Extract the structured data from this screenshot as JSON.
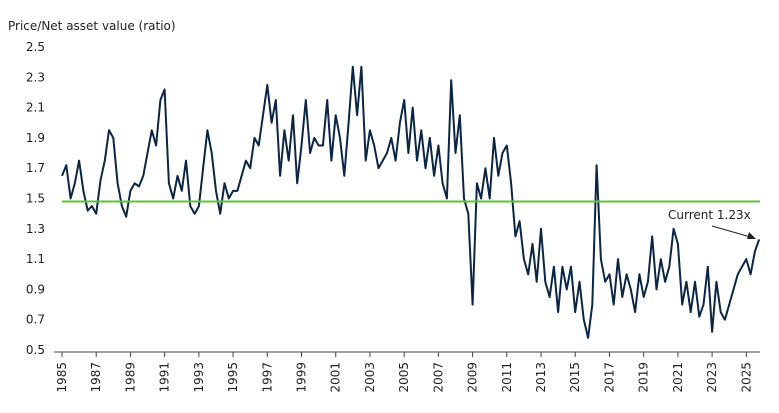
{
  "chart_data": {
    "type": "line",
    "title": "Price/Net asset value (ratio)",
    "annotation": "Current 1.23x",
    "xlim": [
      1985,
      2025.8
    ],
    "xticks": [
      1985,
      1987,
      1989,
      1991,
      1993,
      1995,
      1997,
      1999,
      2001,
      2003,
      2005,
      2007,
      2009,
      2011,
      2013,
      2015,
      2017,
      2019,
      2021,
      2023,
      2025
    ],
    "ylim": [
      0.5,
      2.5
    ],
    "yticks": [
      0.5,
      0.7,
      0.9,
      1.1,
      1.3,
      1.5,
      1.7,
      1.9,
      2.1,
      2.3,
      2.5
    ],
    "reference_line": {
      "value": 1.48,
      "color": "#5cc43a"
    },
    "x": [
      1985,
      1985.25,
      1985.5,
      1985.75,
      1986,
      1986.25,
      1986.5,
      1986.75,
      1987,
      1987.25,
      1987.5,
      1987.75,
      1988,
      1988.25,
      1988.5,
      1988.75,
      1989,
      1989.25,
      1989.5,
      1989.75,
      1990,
      1990.25,
      1990.5,
      1990.75,
      1991,
      1991.25,
      1991.5,
      1991.75,
      1992,
      1992.25,
      1992.5,
      1992.75,
      1993,
      1993.25,
      1993.5,
      1993.75,
      1994,
      1994.25,
      1994.5,
      1994.75,
      1995,
      1995.25,
      1995.5,
      1995.75,
      1996,
      1996.25,
      1996.5,
      1996.75,
      1997,
      1997.25,
      1997.5,
      1997.75,
      1998,
      1998.25,
      1998.5,
      1998.75,
      1999,
      1999.25,
      1999.5,
      1999.75,
      2000,
      2000.25,
      2000.5,
      2000.75,
      2001,
      2001.25,
      2001.5,
      2001.75,
      2002,
      2002.25,
      2002.5,
      2002.75,
      2003,
      2003.25,
      2003.5,
      2003.75,
      2004,
      2004.25,
      2004.5,
      2004.75,
      2005,
      2005.25,
      2005.5,
      2005.75,
      2006,
      2006.25,
      2006.5,
      2006.75,
      2007,
      2007.25,
      2007.5,
      2007.75,
      2008,
      2008.25,
      2008.5,
      2008.75,
      2009,
      2009.25,
      2009.5,
      2009.75,
      2010,
      2010.25,
      2010.5,
      2010.75,
      2011,
      2011.25,
      2011.5,
      2011.75,
      2012,
      2012.25,
      2012.5,
      2012.75,
      2013,
      2013.25,
      2013.5,
      2013.75,
      2014,
      2014.25,
      2014.5,
      2014.75,
      2015,
      2015.25,
      2015.5,
      2015.75,
      2016,
      2016.25,
      2016.5,
      2016.75,
      2017,
      2017.25,
      2017.5,
      2017.75,
      2018,
      2018.25,
      2018.5,
      2018.75,
      2019,
      2019.25,
      2019.5,
      2019.75,
      2020,
      2020.25,
      2020.5,
      2020.75,
      2021,
      2021.25,
      2021.5,
      2021.75,
      2022,
      2022.25,
      2022.5,
      2022.75,
      2023,
      2023.25,
      2023.5,
      2023.75,
      2024,
      2024.25,
      2024.5,
      2024.75,
      2025,
      2025.25,
      2025.5,
      2025.75
    ],
    "series": [
      {
        "color": "#0b2545",
        "values": [
          1.65,
          1.72,
          1.5,
          1.6,
          1.75,
          1.55,
          1.42,
          1.45,
          1.4,
          1.62,
          1.75,
          1.95,
          1.9,
          1.6,
          1.45,
          1.38,
          1.55,
          1.6,
          1.58,
          1.65,
          1.8,
          1.95,
          1.85,
          2.15,
          2.22,
          1.6,
          1.5,
          1.65,
          1.55,
          1.75,
          1.45,
          1.4,
          1.45,
          1.7,
          1.95,
          1.8,
          1.55,
          1.4,
          1.6,
          1.5,
          1.55,
          1.55,
          1.65,
          1.75,
          1.7,
          1.9,
          1.85,
          2.05,
          2.25,
          2.0,
          2.15,
          1.65,
          1.95,
          1.75,
          2.05,
          1.6,
          1.85,
          2.15,
          1.8,
          1.9,
          1.85,
          1.85,
          2.15,
          1.75,
          2.05,
          1.9,
          1.65,
          2.0,
          2.37,
          2.05,
          2.37,
          1.75,
          1.95,
          1.85,
          1.7,
          1.75,
          1.8,
          1.9,
          1.75,
          2.0,
          2.15,
          1.8,
          2.1,
          1.75,
          1.95,
          1.7,
          1.9,
          1.65,
          1.85,
          1.6,
          1.5,
          2.28,
          1.8,
          2.05,
          1.5,
          1.4,
          0.8,
          1.6,
          1.5,
          1.7,
          1.5,
          1.9,
          1.65,
          1.8,
          1.85,
          1.6,
          1.25,
          1.35,
          1.1,
          1.0,
          1.2,
          0.95,
          1.3,
          0.95,
          0.85,
          1.05,
          0.75,
          1.05,
          0.9,
          1.05,
          0.75,
          0.95,
          0.7,
          0.58,
          0.8,
          1.72,
          1.1,
          0.95,
          1.0,
          0.8,
          1.1,
          0.85,
          1.0,
          0.9,
          0.75,
          1.0,
          0.85,
          0.95,
          1.25,
          0.9,
          1.1,
          0.95,
          1.05,
          1.3,
          1.2,
          0.8,
          0.95,
          0.75,
          0.95,
          0.72,
          0.8,
          1.05,
          0.62,
          0.95,
          0.75,
          0.7,
          0.8,
          0.9,
          1.0,
          1.05,
          1.1,
          1.0,
          1.15,
          1.23
        ]
      }
    ]
  }
}
